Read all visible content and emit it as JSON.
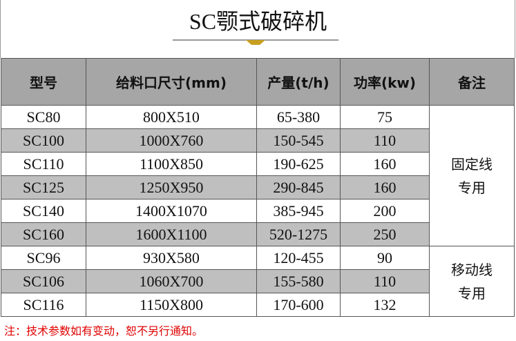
{
  "header": {
    "title": "SC颚式破碎机"
  },
  "table": {
    "headers": [
      "型号",
      "给料口尺寸(mm)",
      "产量(t/h)",
      "功率(kw)",
      "备注"
    ],
    "rows": [
      [
        "SC80",
        "800X510",
        "65-380",
        "75"
      ],
      [
        "SC100",
        "1000X760",
        "150-545",
        "110"
      ],
      [
        "SC110",
        "1100X850",
        "190-625",
        "160"
      ],
      [
        "SC125",
        "1250X950",
        "290-845",
        "160"
      ],
      [
        "SC140",
        "1400X1070",
        "385-945",
        "200"
      ],
      [
        "SC160",
        "1600X1100",
        "520-1275",
        "250"
      ],
      [
        "SC96",
        "930X580",
        "120-455",
        "90"
      ],
      [
        "SC106",
        "1060X700",
        "155-580",
        "110"
      ],
      [
        "SC116",
        "1150X800",
        "170-600",
        "132"
      ]
    ],
    "remarks": [
      {
        "rows": 6,
        "lines": [
          "固定线",
          "专用"
        ]
      },
      {
        "rows": 3,
        "lines": [
          "移动线",
          "专用"
        ]
      }
    ]
  },
  "note": "注：技术参数如有变动，恕不另行通知。"
}
